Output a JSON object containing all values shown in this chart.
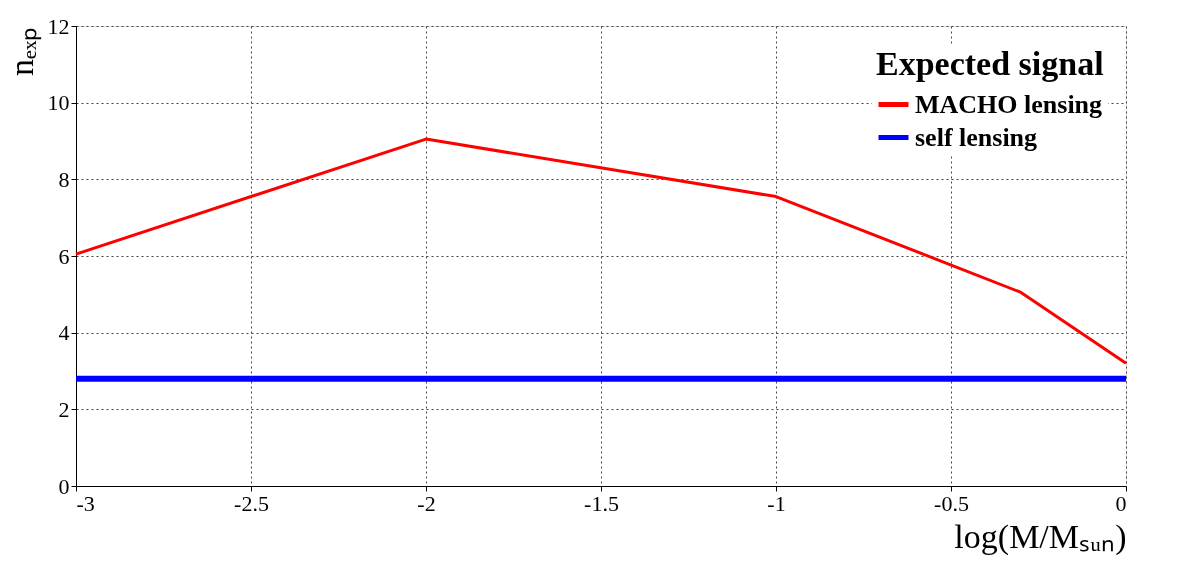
{
  "chart_data": {
    "type": "line",
    "xlabel": "log(M/Mₛᵤₙ)",
    "ylabel": "nₑₓₚ",
    "legend_title": "Expected signal",
    "xlim": [
      -3,
      0
    ],
    "xticks": [
      -3,
      -2.5,
      -2,
      -1.5,
      -1,
      -0.5,
      0
    ],
    "ylim": [
      0,
      12
    ],
    "yticks": [
      0,
      2,
      4,
      6,
      8,
      10,
      12
    ],
    "grid": true,
    "legend": "top right",
    "marker": "none",
    "line_style": "solid",
    "series": [
      {
        "name": "MACHO lensing",
        "color": "#ff0000",
        "x": [
          -3,
          -2,
          -1,
          -0.3,
          0
        ],
        "values": [
          6.05,
          9.05,
          7.55,
          5.05,
          3.2
        ]
      },
      {
        "name": "self lensing",
        "color": "#0000ff",
        "x": [
          -3,
          0
        ],
        "values": [
          2.8,
          2.8
        ]
      }
    ]
  }
}
